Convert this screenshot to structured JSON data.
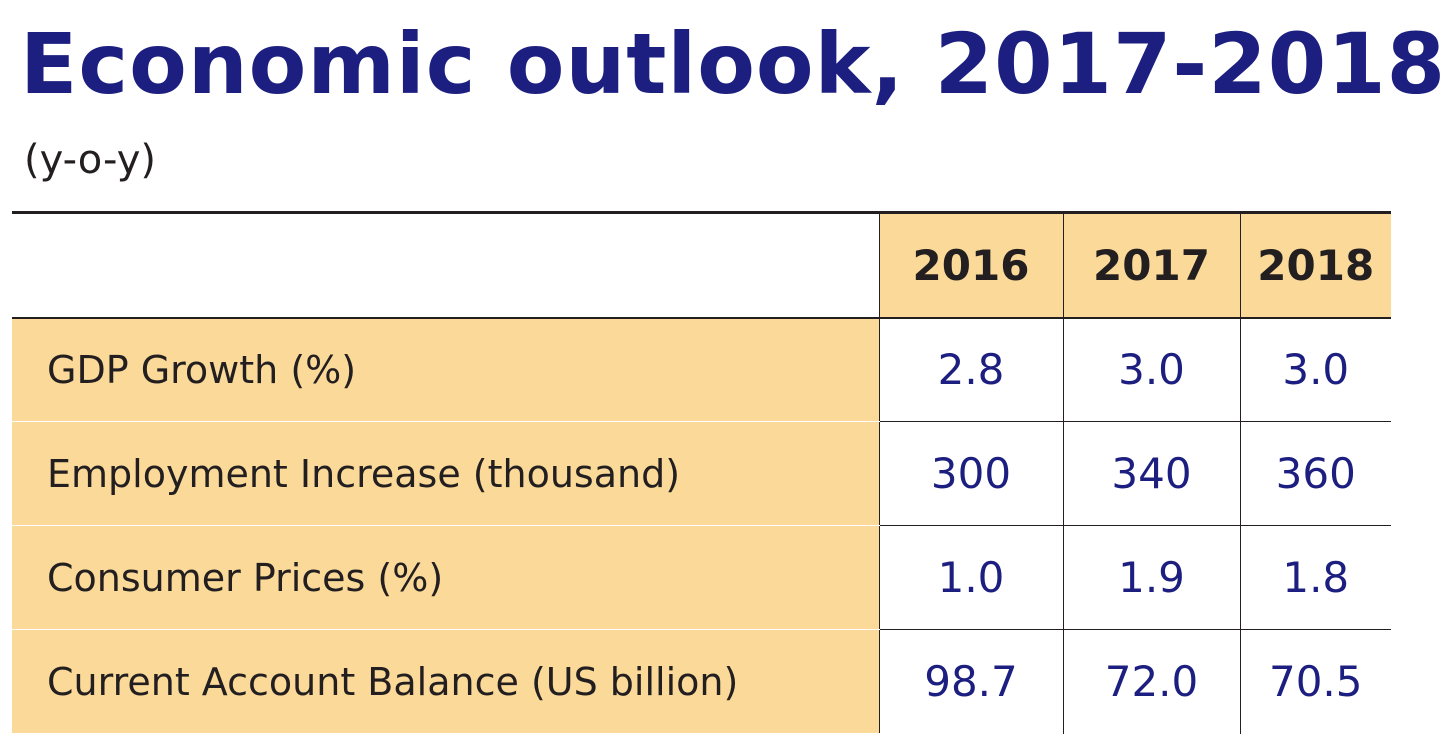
{
  "title": "Economic outlook, 2017-2018",
  "subtitle": "(y-o-y)",
  "colors": {
    "title": "#1c1f80",
    "values": "#1c1f80",
    "label_background": "#fad999",
    "text": "#231f20"
  },
  "chart_data": {
    "type": "table",
    "title": "Economic outlook, 2017-2018",
    "subtitle": "(y-o-y)",
    "columns": [
      "2016",
      "2017",
      "2018"
    ],
    "rows": [
      {
        "label": "GDP Growth (%)",
        "values": [
          "2.8",
          "3.0",
          "3.0"
        ]
      },
      {
        "label": "Employment Increase (thousand)",
        "values": [
          "300",
          "340",
          "360"
        ]
      },
      {
        "label": "Consumer Prices (%)",
        "values": [
          "1.0",
          "1.9",
          "1.8"
        ]
      },
      {
        "label": "Current Account Balance (US billion)",
        "values": [
          "98.7",
          "72.0",
          "70.5"
        ]
      }
    ]
  }
}
